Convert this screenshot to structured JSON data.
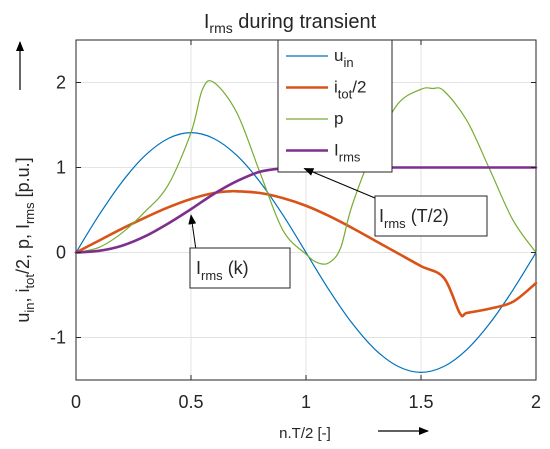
{
  "chart_data": {
    "type": "line",
    "title": {
      "main": "I",
      "sub": "rms",
      "rest": " during transient"
    },
    "xlabel": "n.T/2 [-]",
    "ylabel_parts": [
      {
        "t": "u",
        "sub": false
      },
      {
        "t": "in",
        "sub": true
      },
      {
        "t": ", i",
        "sub": false
      },
      {
        "t": "tot",
        "sub": true
      },
      {
        "t": "/2, p, I",
        "sub": false
      },
      {
        "t": "rms",
        "sub": true
      },
      {
        "t": "  [p.u.]",
        "sub": false
      }
    ],
    "xlim": [
      0,
      2
    ],
    "ylim": [
      -1.5,
      2.5
    ],
    "xticks": [
      0,
      0.5,
      1,
      1.5,
      2
    ],
    "xtick_labels": [
      "0",
      "0.5",
      "1",
      "1.5",
      "2"
    ],
    "yticks": [
      -1,
      0,
      1,
      2
    ],
    "ytick_labels": [
      "-1",
      "0",
      "1",
      "2"
    ],
    "grid": true,
    "legend_position": "top-center",
    "series": [
      {
        "name": "u",
        "name_sub": "in",
        "color": "#0072BD",
        "width": 1.2,
        "x": [
          0,
          0.1,
          0.2,
          0.3,
          0.4,
          0.5,
          0.6,
          0.7,
          0.8,
          0.9,
          1.0,
          1.1,
          1.2,
          1.3,
          1.4,
          1.5,
          1.6,
          1.7,
          1.8,
          1.9,
          2.0
        ],
        "y": [
          0,
          0.44,
          0.83,
          1.14,
          1.34,
          1.41,
          1.34,
          1.14,
          0.83,
          0.44,
          0,
          -0.44,
          -0.83,
          -1.14,
          -1.34,
          -1.41,
          -1.34,
          -1.14,
          -0.83,
          -0.44,
          0
        ]
      },
      {
        "name": "i",
        "name_sub": "tot",
        "name_rest": "/2",
        "color": "#D95319",
        "width": 2.6,
        "x": [
          0,
          0.1,
          0.2,
          0.3,
          0.4,
          0.5,
          0.6,
          0.67,
          0.7,
          0.8,
          0.9,
          1.0,
          1.1,
          1.2,
          1.3,
          1.4,
          1.5,
          1.6,
          1.67,
          1.7,
          1.8,
          1.9,
          2.0
        ],
        "y": [
          0,
          0.14,
          0.28,
          0.41,
          0.53,
          0.63,
          0.7,
          0.72,
          0.72,
          0.7,
          0.64,
          0.55,
          0.43,
          0.29,
          0.14,
          -0.01,
          -0.16,
          -0.3,
          -0.72,
          -0.71,
          -0.66,
          -0.58,
          -0.36
        ]
      },
      {
        "name": "p",
        "color": "#77AC30",
        "width": 1.2,
        "x": [
          0,
          0.1,
          0.2,
          0.3,
          0.4,
          0.5,
          0.55,
          0.6,
          0.7,
          0.8,
          0.9,
          1.0,
          1.05,
          1.1,
          1.15,
          1.2,
          1.3,
          1.4,
          1.5,
          1.55,
          1.6,
          1.7,
          1.8,
          1.9,
          2.0
        ],
        "y": [
          0,
          0.06,
          0.23,
          0.48,
          0.79,
          1.41,
          1.92,
          2.0,
          1.64,
          0.94,
          0.26,
          -0.02,
          -0.12,
          -0.12,
          0.05,
          0.55,
          1.25,
          1.75,
          1.92,
          1.93,
          1.9,
          1.55,
          0.97,
          0.38,
          0
        ]
      },
      {
        "name": "I",
        "name_sub": "rms",
        "color": "#7E2F8E",
        "width": 2.6,
        "x": [
          0,
          0.1,
          0.2,
          0.3,
          0.4,
          0.5,
          0.6,
          0.7,
          0.8,
          0.9,
          0.95,
          1.0,
          1.5,
          2.0
        ],
        "y": [
          0,
          0.02,
          0.08,
          0.19,
          0.34,
          0.51,
          0.69,
          0.84,
          0.95,
          0.99,
          1.0,
          1.0,
          1.0,
          1.0
        ]
      }
    ],
    "annotations": [
      {
        "main": "I",
        "sub": "rms",
        "rest": " (T/2)",
        "point": [
          0.98,
          1.0
        ]
      },
      {
        "main": "I",
        "sub": "rms",
        "rest": " (k)",
        "point": [
          0.5,
          0.51
        ]
      }
    ]
  }
}
